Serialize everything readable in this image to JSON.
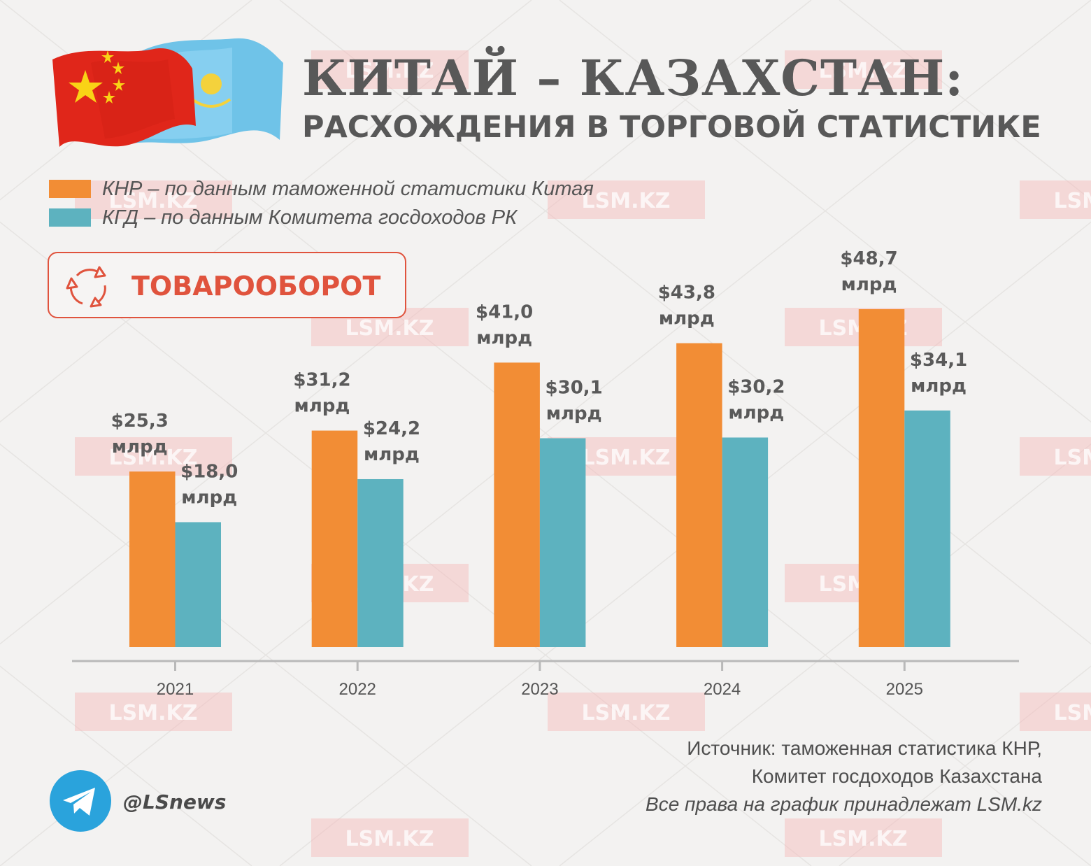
{
  "header": {
    "title": "КИТАЙ – КАЗАХСТАН:",
    "subtitle": "РАСХОЖДЕНИЯ В ТОРГОВОЙ СТАТИСТИКЕ"
  },
  "badge": {
    "label": "ТОВАРООБОРОТ",
    "icon": "recycle-arrows-icon"
  },
  "watermark": "LSM.KZ",
  "colors": {
    "china": "#f28d35",
    "kazakhstan": "#5db2bf",
    "accent": "#e0533d",
    "text": "#585858",
    "background": "#f3f2f1"
  },
  "chart_data": {
    "type": "bar",
    "title": "",
    "xlabel": "",
    "ylabel": "",
    "categories": [
      "2021",
      "2022",
      "2023",
      "2024",
      "2025"
    ],
    "ylim": [
      0,
      55
    ],
    "grid": false,
    "legend": "top-left",
    "series": [
      {
        "name": "КНР – по данным таможенной статистики Китая",
        "color": "#f28d35",
        "values": [
          25.3,
          31.2,
          41.0,
          43.8,
          48.7
        ],
        "labels": [
          [
            "$25,3",
            "млрд"
          ],
          [
            "$31,2",
            "млрд"
          ],
          [
            "$41,0",
            "млрд"
          ],
          [
            "$43,8",
            "млрд"
          ],
          [
            "$48,7",
            "млрд"
          ]
        ]
      },
      {
        "name": "КГД – по данным Комитета госдоходов РК",
        "color": "#5db2bf",
        "values": [
          18.0,
          24.2,
          30.1,
          30.2,
          34.1
        ],
        "labels": [
          [
            "$18,0",
            "млрд"
          ],
          [
            "$24,2",
            "млрд"
          ],
          [
            "$30,1",
            "млрд"
          ],
          [
            "$30,2",
            "млрд"
          ],
          [
            "$34,1",
            "млрд"
          ]
        ]
      }
    ]
  },
  "source": {
    "line1": "Источник: таможенная статистика КНР,",
    "line2": "Комитет госдоходов Казахстана",
    "rights": "Все права на график принадлежат LSM.kz"
  },
  "telegram": {
    "handle": "@LSnews",
    "icon": "telegram-icon"
  }
}
